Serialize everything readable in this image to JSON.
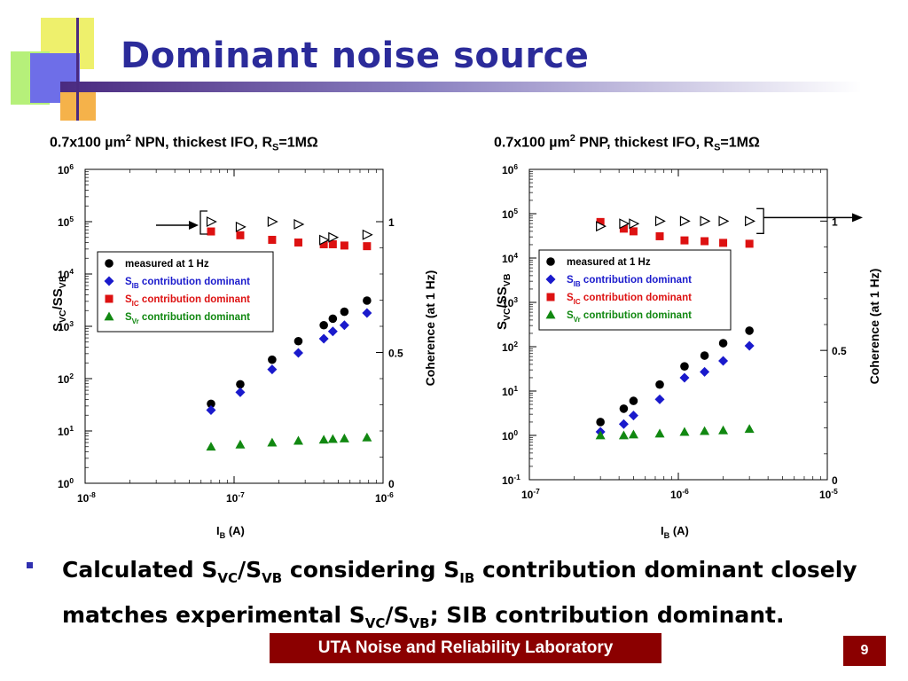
{
  "slide": {
    "title": "Dominant noise source",
    "bullet": {
      "p1": "Calculated S",
      "s1": "VC",
      "p2": "/S",
      "s2": "VB",
      "p3": " considering S",
      "s3": "IB",
      "p4": " contribution  dominant closely matches experimental S",
      "s4": "VC",
      "p5": "/S",
      "s5": "VB",
      "p6": "; SIB contribution dominant."
    },
    "footer": "UTA Noise and Reliability Laboratory",
    "page_number": "9"
  },
  "colors": {
    "title": "#2b2b9a",
    "footer_bg": "#8b0000",
    "measured": "#000000",
    "sib": "#1a1acc",
    "sic": "#dd1111",
    "svr": "#118811"
  },
  "chart_data": [
    {
      "type": "scatter",
      "title_parts": {
        "a": "0.7x100 µm",
        "sup": "2",
        "b": " NPN, thickest IFO, R",
        "sub": "S",
        "c": "=1MΩ"
      },
      "xlabel": "I",
      "xlabel_sub": "B",
      "xlabel_unit": " (A)",
      "ylabel": "S",
      "ylabel_sub1": "VC",
      "ylabel_mid": "/S",
      "ylabel_sub2": "VB",
      "y2label": "Coherence (at 1 Hz)",
      "x_log_range": [
        -8,
        -6
      ],
      "y_log_range": [
        0,
        6
      ],
      "x_ticks": [
        {
          "base": "10",
          "exp": "-8",
          "log": -8
        },
        {
          "base": "10",
          "exp": "-7",
          "log": -7
        },
        {
          "base": "10",
          "exp": "-6",
          "log": -6
        }
      ],
      "y_ticks": [
        {
          "base": "10",
          "exp": "0",
          "log": 0
        },
        {
          "base": "10",
          "exp": "1",
          "log": 1
        },
        {
          "base": "10",
          "exp": "2",
          "log": 2
        },
        {
          "base": "10",
          "exp": "3",
          "log": 3
        },
        {
          "base": "10",
          "exp": "4",
          "log": 4
        },
        {
          "base": "10",
          "exp": "5",
          "log": 5
        },
        {
          "base": "10",
          "exp": "6",
          "log": 6
        }
      ],
      "y2_ticks": [
        {
          "label": "0",
          "value": 0
        },
        {
          "label": "0.5",
          "value": 0.5
        },
        {
          "label": "1",
          "value": 1
        }
      ],
      "legend": {
        "measured": "measured at 1 Hz",
        "sib_s": "S",
        "sib_sub": "IB",
        "sib_text": " contribution dominant",
        "sic_s": "S",
        "sic_sub": "IC",
        "sic_text": " contribution dominant",
        "svr_s": "S",
        "svr_sub": "Vr",
        "svr_text": " contribution dominant"
      },
      "arrow": "left",
      "series": [
        {
          "name": "measured at 1 Hz",
          "marker": "circle",
          "x": [
            7e-08,
            1.1e-07,
            1.8e-07,
            2.7e-07,
            4e-07,
            4.6e-07,
            5.5e-07,
            7.8e-07
          ],
          "y": [
            33,
            78,
            230,
            520,
            1050,
            1400,
            1900,
            3100
          ]
        },
        {
          "name": "SIB contribution dominant",
          "marker": "diamond",
          "x": [
            7e-08,
            1.1e-07,
            1.8e-07,
            2.7e-07,
            4e-07,
            4.6e-07,
            5.5e-07,
            7.8e-07
          ],
          "y": [
            25,
            55,
            150,
            310,
            580,
            800,
            1050,
            1800
          ]
        },
        {
          "name": "SIC contribution dominant",
          "marker": "square",
          "x": [
            7e-08,
            1.1e-07,
            1.8e-07,
            2.7e-07,
            4e-07,
            4.6e-07,
            5.5e-07,
            7.8e-07
          ],
          "y": [
            65000,
            55000,
            45000,
            40000,
            37000,
            37000,
            35000,
            34000
          ]
        },
        {
          "name": "SVr contribution dominant",
          "marker": "triangle",
          "x": [
            7e-08,
            1.1e-07,
            1.8e-07,
            2.7e-07,
            4e-07,
            4.6e-07,
            5.5e-07,
            7.8e-07
          ],
          "y": [
            5,
            5.5,
            6,
            6.5,
            6.8,
            7,
            7.2,
            7.5
          ]
        },
        {
          "name": "Coherence",
          "axis": "y2",
          "marker": "open-triangle",
          "x": [
            7e-08,
            1.1e-07,
            1.8e-07,
            2.7e-07,
            4e-07,
            4.6e-07,
            7.8e-07
          ],
          "y": [
            1.0,
            0.98,
            1.0,
            0.99,
            0.93,
            0.94,
            0.95
          ]
        }
      ]
    },
    {
      "type": "scatter",
      "title_parts": {
        "a": "0.7x100 µm",
        "sup": "2",
        "b": " PNP, thickest IFO, R",
        "sub": "S",
        "c": "=1MΩ"
      },
      "xlabel": "I",
      "xlabel_sub": "B",
      "xlabel_unit": " (A)",
      "ylabel": "S",
      "ylabel_sub1": "VC",
      "ylabel_mid": "/S",
      "ylabel_sub2": "VB",
      "y2label": "Coherence (at 1 Hz)",
      "x_log_range": [
        -7,
        -5
      ],
      "y_log_range": [
        -1,
        6
      ],
      "x_ticks": [
        {
          "base": "10",
          "exp": "-7",
          "log": -7
        },
        {
          "base": "10",
          "exp": "-6",
          "log": -6
        },
        {
          "base": "10",
          "exp": "-5",
          "log": -5
        }
      ],
      "y_ticks": [
        {
          "base": "10",
          "exp": "-1",
          "log": -1
        },
        {
          "base": "10",
          "exp": "0",
          "log": 0
        },
        {
          "base": "10",
          "exp": "1",
          "log": 1
        },
        {
          "base": "10",
          "exp": "2",
          "log": 2
        },
        {
          "base": "10",
          "exp": "3",
          "log": 3
        },
        {
          "base": "10",
          "exp": "4",
          "log": 4
        },
        {
          "base": "10",
          "exp": "5",
          "log": 5
        },
        {
          "base": "10",
          "exp": "6",
          "log": 6
        }
      ],
      "y2_ticks": [
        {
          "label": "0",
          "value": 0
        },
        {
          "label": "0.5",
          "value": 0.5
        },
        {
          "label": "1",
          "value": 1
        }
      ],
      "legend": {
        "measured": "measured at 1 Hz",
        "sib_s": "S",
        "sib_sub": "IB",
        "sib_text": " contribution dominant",
        "sic_s": "S",
        "sic_sub": "IC",
        "sic_text": " contribution dominant",
        "svr_s": "S",
        "svr_sub": "Vr",
        "svr_text": " contribution dominant"
      },
      "arrow": "right",
      "series": [
        {
          "name": "measured at 1 Hz",
          "marker": "circle",
          "x": [
            3e-07,
            4.3e-07,
            5e-07,
            7.5e-07,
            1.1e-06,
            1.5e-06,
            2e-06,
            3e-06
          ],
          "y": [
            2,
            4,
            6,
            14,
            36,
            63,
            120,
            230
          ]
        },
        {
          "name": "SIB contribution dominant",
          "marker": "diamond",
          "x": [
            3e-07,
            4.3e-07,
            5e-07,
            7.5e-07,
            1.1e-06,
            1.5e-06,
            2e-06,
            3e-06
          ],
          "y": [
            1.2,
            1.8,
            2.8,
            6.5,
            20,
            27,
            48,
            105
          ]
        },
        {
          "name": "SIC contribution dominant",
          "marker": "square",
          "x": [
            3e-07,
            4.3e-07,
            5e-07,
            7.5e-07,
            1.1e-06,
            1.5e-06,
            2e-06,
            3e-06
          ],
          "y": [
            65000,
            46000,
            40000,
            31000,
            25000,
            24000,
            22000,
            21000
          ]
        },
        {
          "name": "SVr contribution dominant",
          "marker": "triangle",
          "x": [
            3e-07,
            4.3e-07,
            5e-07,
            7.5e-07,
            1.1e-06,
            1.5e-06,
            2e-06,
            3e-06
          ],
          "y": [
            1,
            1,
            1.05,
            1.1,
            1.2,
            1.25,
            1.3,
            1.4
          ]
        },
        {
          "name": "Coherence",
          "axis": "y2",
          "marker": "open-triangle",
          "x": [
            3e-07,
            4.3e-07,
            5e-07,
            7.5e-07,
            1.1e-06,
            1.5e-06,
            2e-06,
            3e-06
          ],
          "y": [
            0.98,
            0.99,
            0.99,
            1.0,
            1.0,
            1.0,
            1.0,
            1.0
          ]
        }
      ]
    }
  ]
}
